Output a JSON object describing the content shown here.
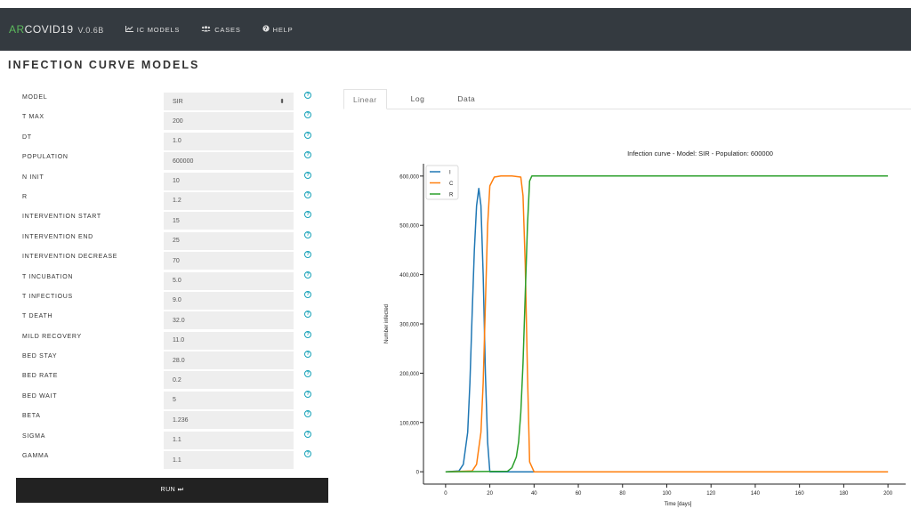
{
  "navbar": {
    "brand_ar": "AR",
    "brand_rest": "COVID19",
    "version": "V.0.6B",
    "links": [
      {
        "label": "IC MODELS",
        "icon": "chart-line-icon",
        "glyph": "📈"
      },
      {
        "label": "CASES",
        "icon": "users-icon",
        "glyph": "👥"
      },
      {
        "label": "HELP",
        "icon": "question-circle-icon",
        "glyph": "✪"
      }
    ]
  },
  "page": {
    "title": "INFECTION CURVE MODELS"
  },
  "form": {
    "fields": [
      {
        "label": "MODEL",
        "value": "SIR",
        "type": "select"
      },
      {
        "label": "T MAX",
        "value": "200"
      },
      {
        "label": "DT",
        "value": "1.0"
      },
      {
        "label": "POPULATION",
        "value": "600000"
      },
      {
        "label": "N INIT",
        "value": "10"
      },
      {
        "label": "R",
        "value": "1.2"
      },
      {
        "label": "INTERVENTION START",
        "value": "15"
      },
      {
        "label": "INTERVENTION END",
        "value": "25"
      },
      {
        "label": "INTERVENTION DECREASE",
        "value": "70"
      },
      {
        "label": "T INCUBATION",
        "value": "5.0"
      },
      {
        "label": "T INFECTIOUS",
        "value": "9.0"
      },
      {
        "label": "T DEATH",
        "value": "32.0"
      },
      {
        "label": "MILD RECOVERY",
        "value": "11.0"
      },
      {
        "label": "BED STAY",
        "value": "28.0"
      },
      {
        "label": "BED RATE",
        "value": "0.2"
      },
      {
        "label": "BED WAIT",
        "value": "5"
      },
      {
        "label": "BETA",
        "value": "1.236"
      },
      {
        "label": "SIGMA",
        "value": "1.1"
      },
      {
        "label": "GAMMA",
        "value": "1.1"
      }
    ],
    "help_glyph": "?",
    "select_arrow": "⬍",
    "run_label": "RUN ⏭"
  },
  "tabs": [
    {
      "label": "Linear",
      "active": true
    },
    {
      "label": "Log",
      "active": false
    },
    {
      "label": "Data",
      "active": false
    }
  ],
  "colors": {
    "I": "#1f77b4",
    "C": "#ff7f0e",
    "R": "#2ca02c",
    "navbar": "#343a40",
    "brand_accent": "#5cb85c"
  },
  "chart_data": {
    "type": "line",
    "title": "Infection curve - Model: SIR - Population: 600000",
    "xlabel": "Time [days]",
    "ylabel": "Number infected",
    "xlim": [
      -10,
      208
    ],
    "ylim": [
      -25000,
      625000
    ],
    "xticks": [
      0,
      20,
      40,
      60,
      80,
      100,
      120,
      140,
      160,
      180,
      200
    ],
    "yticks": [
      0,
      100000,
      200000,
      300000,
      400000,
      500000,
      600000
    ],
    "ytick_labels": [
      "0",
      "100,000",
      "200,000",
      "300,000",
      "400,000",
      "500,000",
      "600,000"
    ],
    "legend_position": "top-left",
    "series": [
      {
        "name": "I",
        "x": [
          0,
          6,
          8,
          10,
          11,
          12,
          13,
          14,
          15,
          16,
          17,
          18,
          19,
          20,
          200
        ],
        "y": [
          0,
          1500,
          15000,
          80000,
          180000,
          320000,
          450000,
          540000,
          575000,
          540000,
          400000,
          200000,
          60000,
          0,
          0
        ]
      },
      {
        "name": "C",
        "x": [
          0,
          12,
          14,
          16,
          17,
          18,
          19,
          20,
          22,
          25,
          30,
          34,
          35,
          36,
          37,
          38,
          40,
          200
        ],
        "y": [
          0,
          1500,
          15000,
          80000,
          180000,
          340000,
          500000,
          580000,
          598000,
          600000,
          600000,
          598000,
          560000,
          420000,
          200000,
          20000,
          0,
          0
        ]
      },
      {
        "name": "R",
        "x": [
          0,
          28,
          30,
          32,
          33,
          34,
          35,
          36,
          37,
          38,
          39,
          200
        ],
        "y": [
          0,
          1000,
          8000,
          30000,
          60000,
          120000,
          220000,
          360000,
          500000,
          590000,
          600000,
          600000
        ]
      }
    ]
  }
}
